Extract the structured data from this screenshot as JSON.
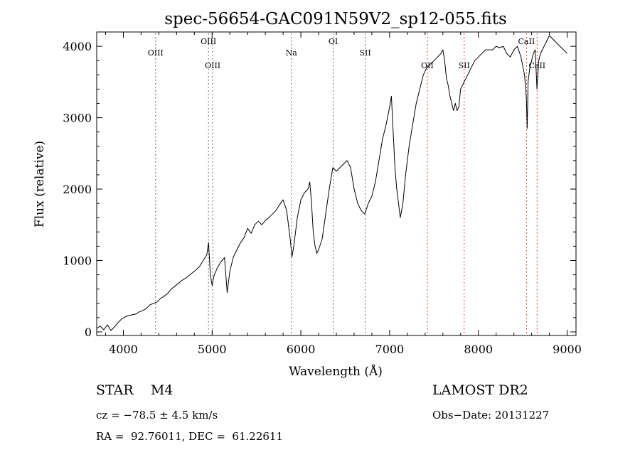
{
  "chart_data": {
    "type": "line",
    "title": "spec-56654-GAC091N59V2_sp12-055.fits",
    "xlabel": "Wavelength (Å)",
    "ylabel": "Flux (relative)",
    "xlim": [
      3700,
      9100
    ],
    "ylim": [
      -50,
      4200
    ],
    "xticks": [
      4000,
      5000,
      6000,
      7000,
      8000,
      9000
    ],
    "yticks": [
      0,
      1000,
      2000,
      3000,
      4000
    ],
    "series": [
      {
        "color": "#000000",
        "x": [
          3700,
          3740,
          3780,
          3820,
          3860,
          3900,
          3940,
          3980,
          4020,
          4060,
          4100,
          4140,
          4180,
          4220,
          4260,
          4300,
          4340,
          4380,
          4420,
          4460,
          4500,
          4540,
          4580,
          4620,
          4660,
          4700,
          4740,
          4780,
          4820,
          4860,
          4900,
          4940,
          4960,
          4980,
          5000,
          5020,
          5060,
          5100,
          5140,
          5170,
          5200,
          5240,
          5280,
          5320,
          5360,
          5400,
          5440,
          5480,
          5520,
          5560,
          5600,
          5640,
          5680,
          5720,
          5760,
          5800,
          5840,
          5880,
          5900,
          5920,
          5960,
          6000,
          6040,
          6080,
          6100,
          6120,
          6140,
          6160,
          6180,
          6200,
          6240,
          6280,
          6320,
          6360,
          6400,
          6440,
          6480,
          6520,
          6560,
          6600,
          6640,
          6680,
          6720,
          6760,
          6800,
          6840,
          6880,
          6920,
          6960,
          7000,
          7020,
          7040,
          7060,
          7080,
          7100,
          7120,
          7150,
          7180,
          7220,
          7260,
          7300,
          7340,
          7380,
          7420,
          7460,
          7500,
          7540,
          7580,
          7600,
          7620,
          7640,
          7660,
          7680,
          7700,
          7720,
          7740,
          7760,
          7780,
          7800,
          7840,
          7880,
          7920,
          7960,
          8000,
          8040,
          8080,
          8120,
          8160,
          8200,
          8240,
          8280,
          8320,
          8360,
          8400,
          8440,
          8480,
          8520,
          8540,
          8550,
          8560,
          8580,
          8600,
          8620,
          8640,
          8660,
          8680,
          8700,
          8740,
          8780,
          8800,
          8840,
          8880,
          8920,
          8960,
          9000
        ],
        "y": [
          50,
          80,
          30,
          100,
          20,
          70,
          130,
          180,
          210,
          230,
          240,
          250,
          280,
          300,
          330,
          380,
          400,
          420,
          470,
          500,
          540,
          600,
          640,
          680,
          720,
          750,
          790,
          830,
          870,
          920,
          1000,
          1080,
          1250,
          800,
          650,
          780,
          900,
          980,
          1040,
          550,
          850,
          1050,
          1150,
          1250,
          1320,
          1450,
          1380,
          1500,
          1550,
          1500,
          1560,
          1600,
          1650,
          1700,
          1780,
          1850,
          1700,
          1300,
          1050,
          1200,
          1600,
          1850,
          1950,
          2000,
          2100,
          1800,
          1400,
          1200,
          1100,
          1150,
          1300,
          1650,
          2000,
          2300,
          2250,
          2300,
          2350,
          2400,
          2300,
          2000,
          1800,
          1700,
          1650,
          1800,
          1900,
          2100,
          2400,
          2700,
          2900,
          3150,
          3300,
          2800,
          2300,
          2000,
          1800,
          1600,
          1800,
          2200,
          2600,
          2900,
          3200,
          3400,
          3600,
          3700,
          3750,
          3800,
          3850,
          3900,
          3950,
          3800,
          3550,
          3450,
          3300,
          3200,
          3100,
          3200,
          3100,
          3150,
          3400,
          3500,
          3600,
          3700,
          3800,
          3850,
          3900,
          3950,
          3950,
          3950,
          4000,
          3980,
          4000,
          3900,
          3850,
          3950,
          4000,
          3850,
          3600,
          3300,
          2850,
          3500,
          3700,
          3800,
          3900,
          3950,
          3400,
          3800,
          3900,
          4000,
          4100,
          4150,
          4100,
          4050,
          4000,
          3950,
          3900
        ]
      }
    ],
    "lines": [
      {
        "label": "OIII",
        "x": 4363,
        "color": "#444444",
        "row": "upper"
      },
      {
        "label": "OIII",
        "x": 4959,
        "color": "#444444",
        "row": "top"
      },
      {
        "label": "OIII",
        "x": 5007,
        "color": "#444444",
        "row": "lower"
      },
      {
        "label": "Na",
        "x": 5893,
        "color": "#444444",
        "row": "upper"
      },
      {
        "label": "OI",
        "x": 6364,
        "color": "#444444",
        "row": "top"
      },
      {
        "label": "SII",
        "x": 6725,
        "color": "#444444",
        "row": "upper"
      },
      {
        "label": "OII",
        "x": 7425,
        "color": "#cc0000",
        "row": "lower"
      },
      {
        "label": "SII",
        "x": 7840,
        "color": "#cc0000",
        "row": "lower"
      },
      {
        "label": "CaII",
        "x": 8542,
        "color": "#cc0000",
        "row": "top"
      },
      {
        "label": "CaII",
        "x": 8662,
        "color": "#cc0000",
        "row": "lower"
      }
    ]
  },
  "info": {
    "star": "STAR    M4",
    "survey": "LAMOST DR2",
    "cz": "cz = −78.5 ± 4.5 km/s",
    "obs_date": "Obs−Date: 20131227",
    "radec": "RA =  92.76011, DEC =  61.22611"
  }
}
